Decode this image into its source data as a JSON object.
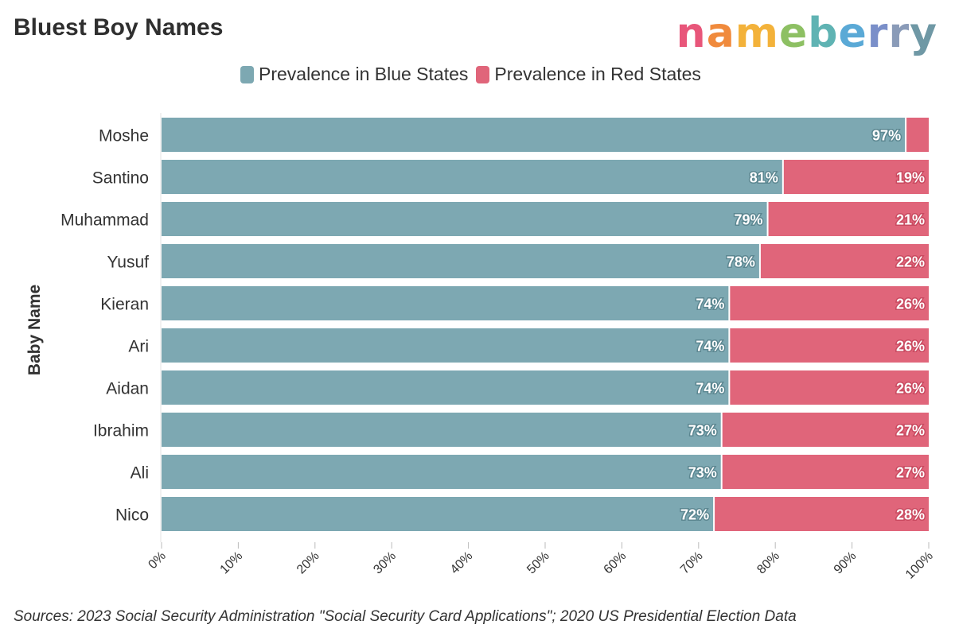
{
  "title": "Bluest Boy Names",
  "logo": {
    "text": "nameberry",
    "letter_colors": [
      "#e8567a",
      "#f08a3c",
      "#f3b23a",
      "#8dc063",
      "#5fb3b3",
      "#5aa9d6",
      "#7a8fc9",
      "#8a9bb8",
      "#6f98a5"
    ]
  },
  "source": "Sources: 2023 Social Security Administration \"Social Security Card Applications\"; 2020 US Presidential Election Data",
  "colors": {
    "blue": "#7da8b2",
    "red": "#e0657a"
  },
  "chart_data": {
    "type": "bar",
    "orientation": "horizontal",
    "stacked": true,
    "ylabel": "Baby Name",
    "xlim": [
      0,
      100
    ],
    "x_ticks": [
      "0%",
      "10%",
      "20%",
      "30%",
      "40%",
      "50%",
      "60%",
      "70%",
      "80%",
      "90%",
      "100%"
    ],
    "legend_position": "top",
    "categories": [
      "Moshe",
      "Santino",
      "Muhammad",
      "Yusuf",
      "Kieran",
      "Ari",
      "Aidan",
      "Ibrahim",
      "Ali",
      "Nico"
    ],
    "series": [
      {
        "name": "Prevalence in Blue States",
        "values": [
          97,
          81,
          79,
          78,
          74,
          74,
          74,
          73,
          73,
          72
        ],
        "labels": [
          "97%",
          "81%",
          "79%",
          "78%",
          "74%",
          "74%",
          "74%",
          "73%",
          "73%",
          "72%"
        ]
      },
      {
        "name": "Prevalence in Red States",
        "values": [
          3,
          19,
          21,
          22,
          26,
          26,
          26,
          27,
          27,
          28
        ],
        "labels": [
          "",
          "19%",
          "21%",
          "22%",
          "26%",
          "26%",
          "26%",
          "27%",
          "27%",
          "28%"
        ]
      }
    ]
  }
}
